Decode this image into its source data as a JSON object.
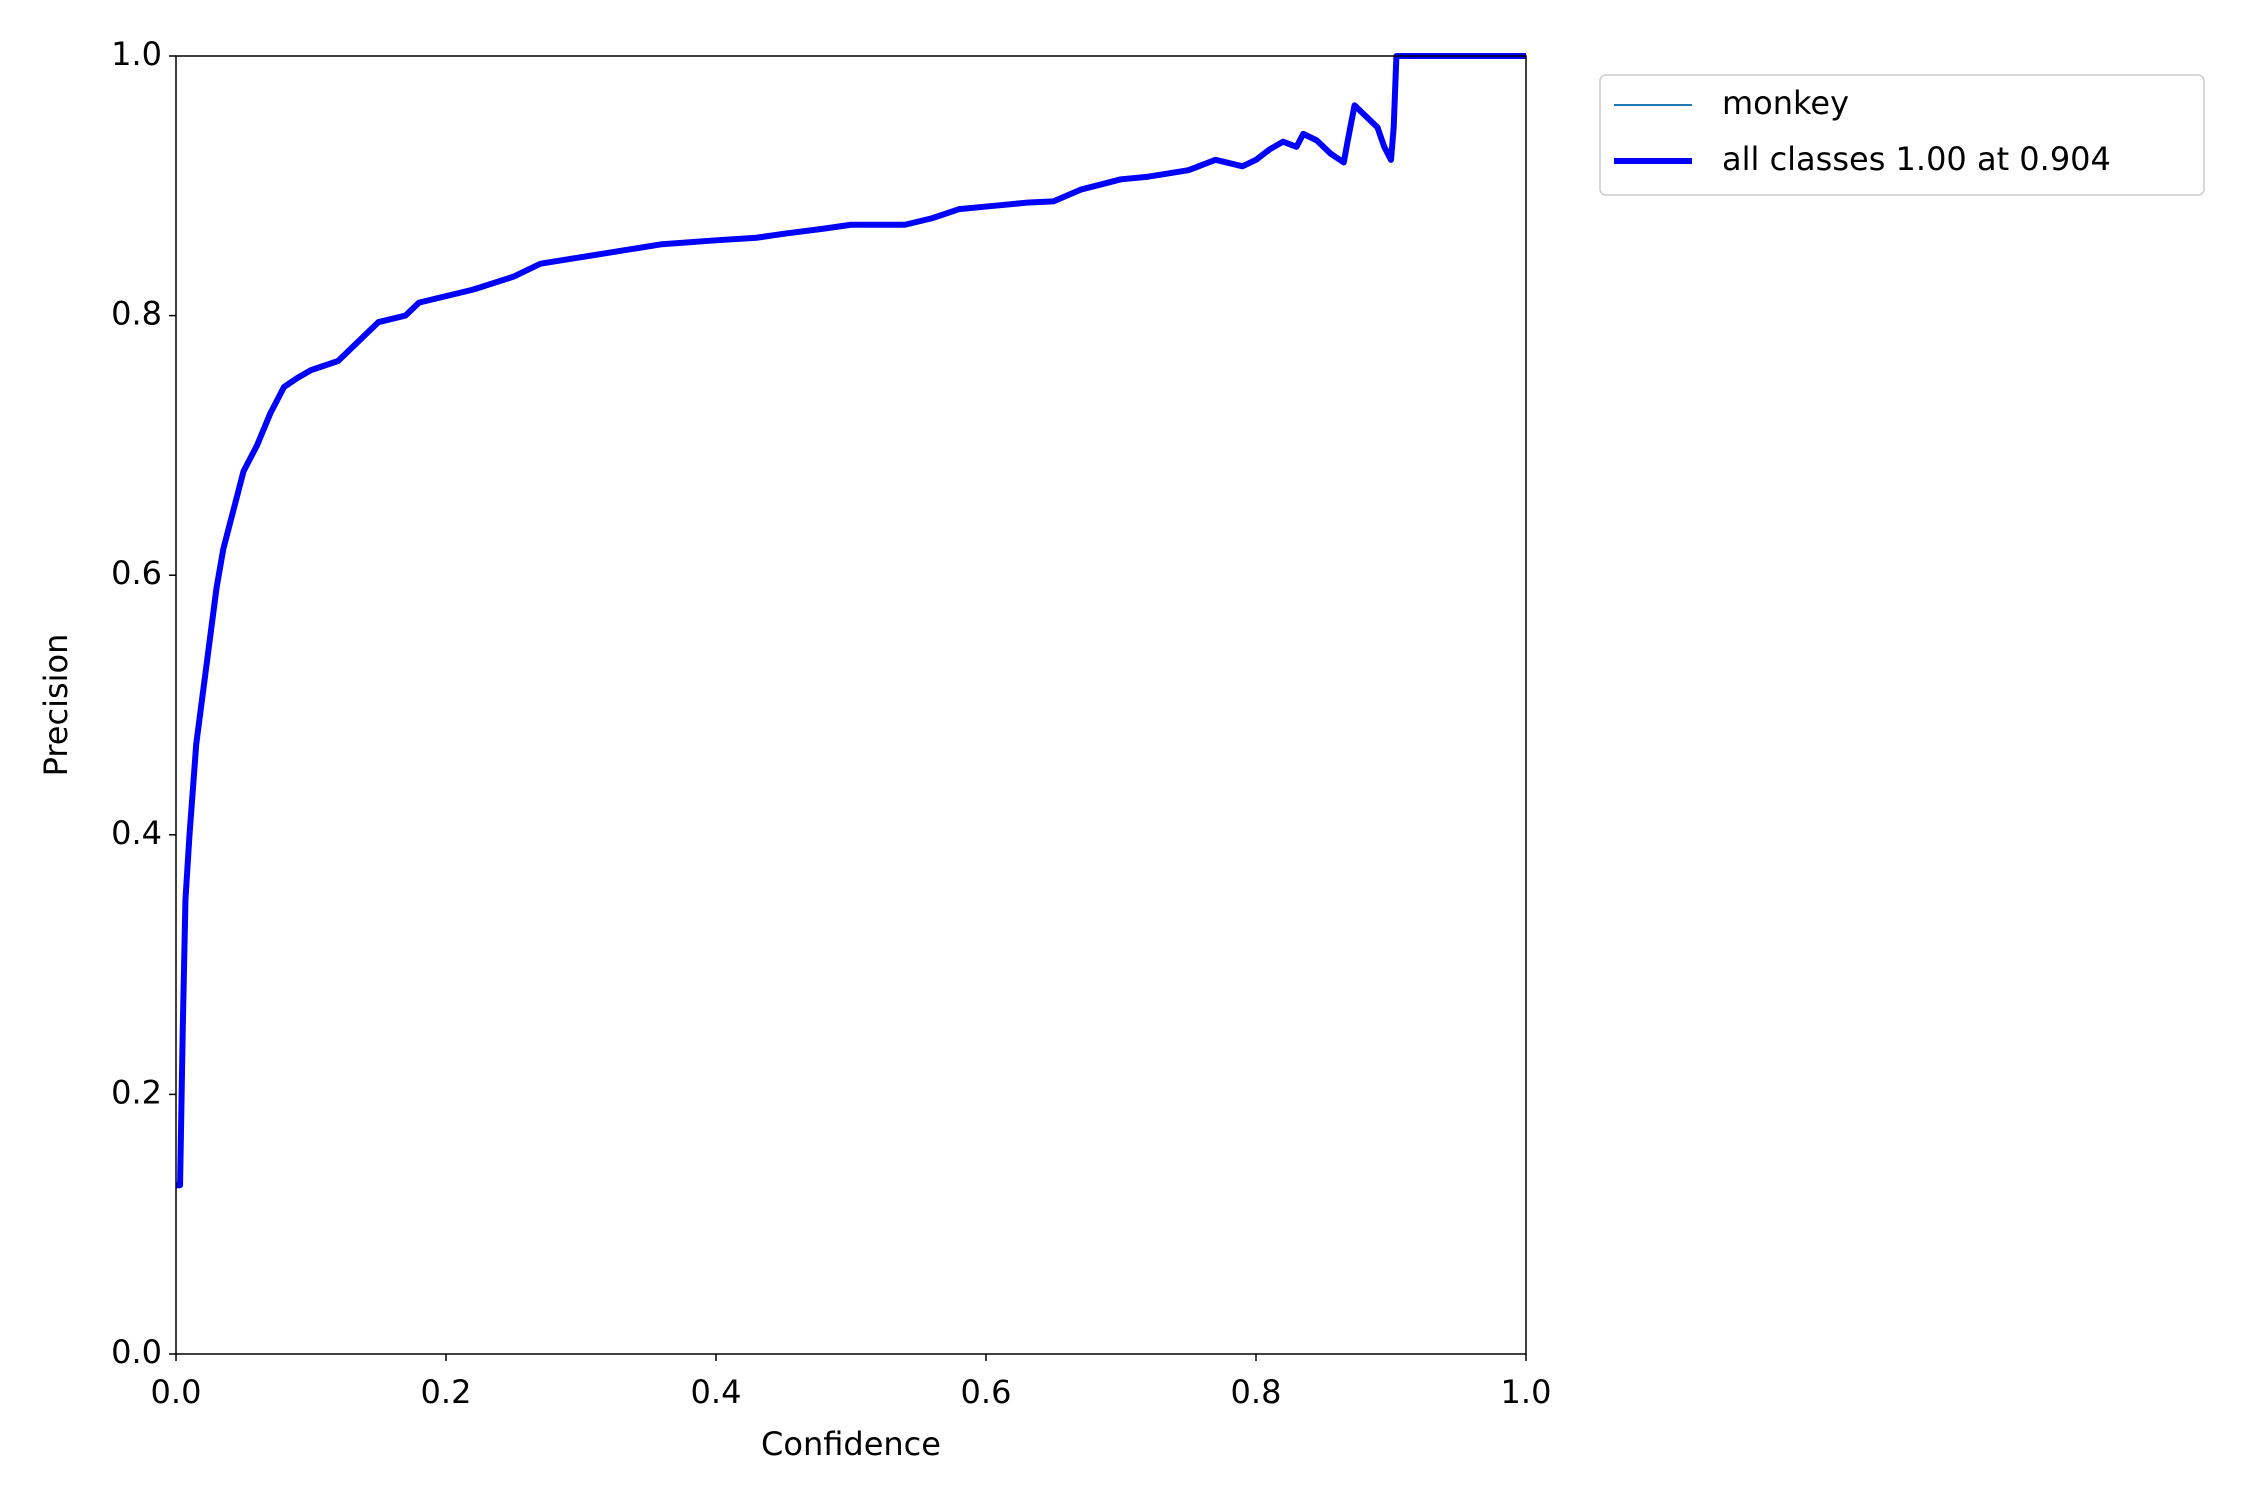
{
  "chart_data": {
    "type": "line",
    "xlabel": "Confidence",
    "ylabel": "Precision",
    "x": [
      0.0,
      0.003,
      0.005,
      0.007,
      0.01,
      0.015,
      0.02,
      0.025,
      0.03,
      0.035,
      0.04,
      0.045,
      0.05,
      0.06,
      0.07,
      0.08,
      0.09,
      0.1,
      0.12,
      0.13,
      0.15,
      0.17,
      0.18,
      0.2,
      0.22,
      0.25,
      0.27,
      0.3,
      0.33,
      0.36,
      0.4,
      0.43,
      0.45,
      0.48,
      0.5,
      0.54,
      0.56,
      0.58,
      0.6,
      0.63,
      0.65,
      0.67,
      0.7,
      0.72,
      0.75,
      0.77,
      0.79,
      0.8,
      0.81,
      0.82,
      0.83,
      0.835,
      0.845,
      0.855,
      0.865,
      0.868,
      0.873,
      0.88,
      0.89,
      0.895,
      0.9,
      0.902,
      0.904,
      1.0
    ],
    "series": [
      {
        "name": "monkey",
        "color": "#1f77b4",
        "width": 1,
        "values": [
          0.13,
          0.13,
          0.25,
          0.35,
          0.4,
          0.47,
          0.51,
          0.55,
          0.59,
          0.62,
          0.64,
          0.66,
          0.68,
          0.7,
          0.725,
          0.745,
          0.752,
          0.758,
          0.765,
          0.775,
          0.795,
          0.8,
          0.81,
          0.815,
          0.82,
          0.83,
          0.84,
          0.845,
          0.85,
          0.855,
          0.858,
          0.86,
          0.863,
          0.867,
          0.87,
          0.87,
          0.875,
          0.882,
          0.884,
          0.887,
          0.888,
          0.897,
          0.905,
          0.907,
          0.912,
          0.92,
          0.915,
          0.92,
          0.928,
          0.934,
          0.93,
          0.94,
          0.935,
          0.925,
          0.918,
          0.935,
          0.962,
          0.955,
          0.945,
          0.93,
          0.92,
          0.945,
          1.0,
          1.0
        ]
      },
      {
        "name": "all classes 1.00 at 0.904",
        "color": "#0000ff",
        "width": 3,
        "values": [
          0.13,
          0.13,
          0.25,
          0.35,
          0.4,
          0.47,
          0.51,
          0.55,
          0.59,
          0.62,
          0.64,
          0.66,
          0.68,
          0.7,
          0.725,
          0.745,
          0.752,
          0.758,
          0.765,
          0.775,
          0.795,
          0.8,
          0.81,
          0.815,
          0.82,
          0.83,
          0.84,
          0.845,
          0.85,
          0.855,
          0.858,
          0.86,
          0.863,
          0.867,
          0.87,
          0.87,
          0.875,
          0.882,
          0.884,
          0.887,
          0.888,
          0.897,
          0.905,
          0.907,
          0.912,
          0.92,
          0.915,
          0.92,
          0.928,
          0.934,
          0.93,
          0.94,
          0.935,
          0.925,
          0.918,
          0.935,
          0.962,
          0.955,
          0.945,
          0.93,
          0.92,
          0.945,
          1.0,
          1.0
        ]
      }
    ],
    "xlim": [
      0,
      1
    ],
    "ylim": [
      0,
      1
    ],
    "xticks": [
      {
        "value": 0,
        "label": "0.0"
      },
      0.2,
      0.4,
      0.6,
      0.8,
      {
        "value": 1,
        "label": "1.0"
      }
    ],
    "yticks": [
      {
        "value": 0,
        "label": "0.0"
      },
      0.2,
      0.4,
      0.6,
      0.8,
      {
        "value": 1,
        "label": "1.0"
      }
    ],
    "legend": "outside-upper-right"
  }
}
